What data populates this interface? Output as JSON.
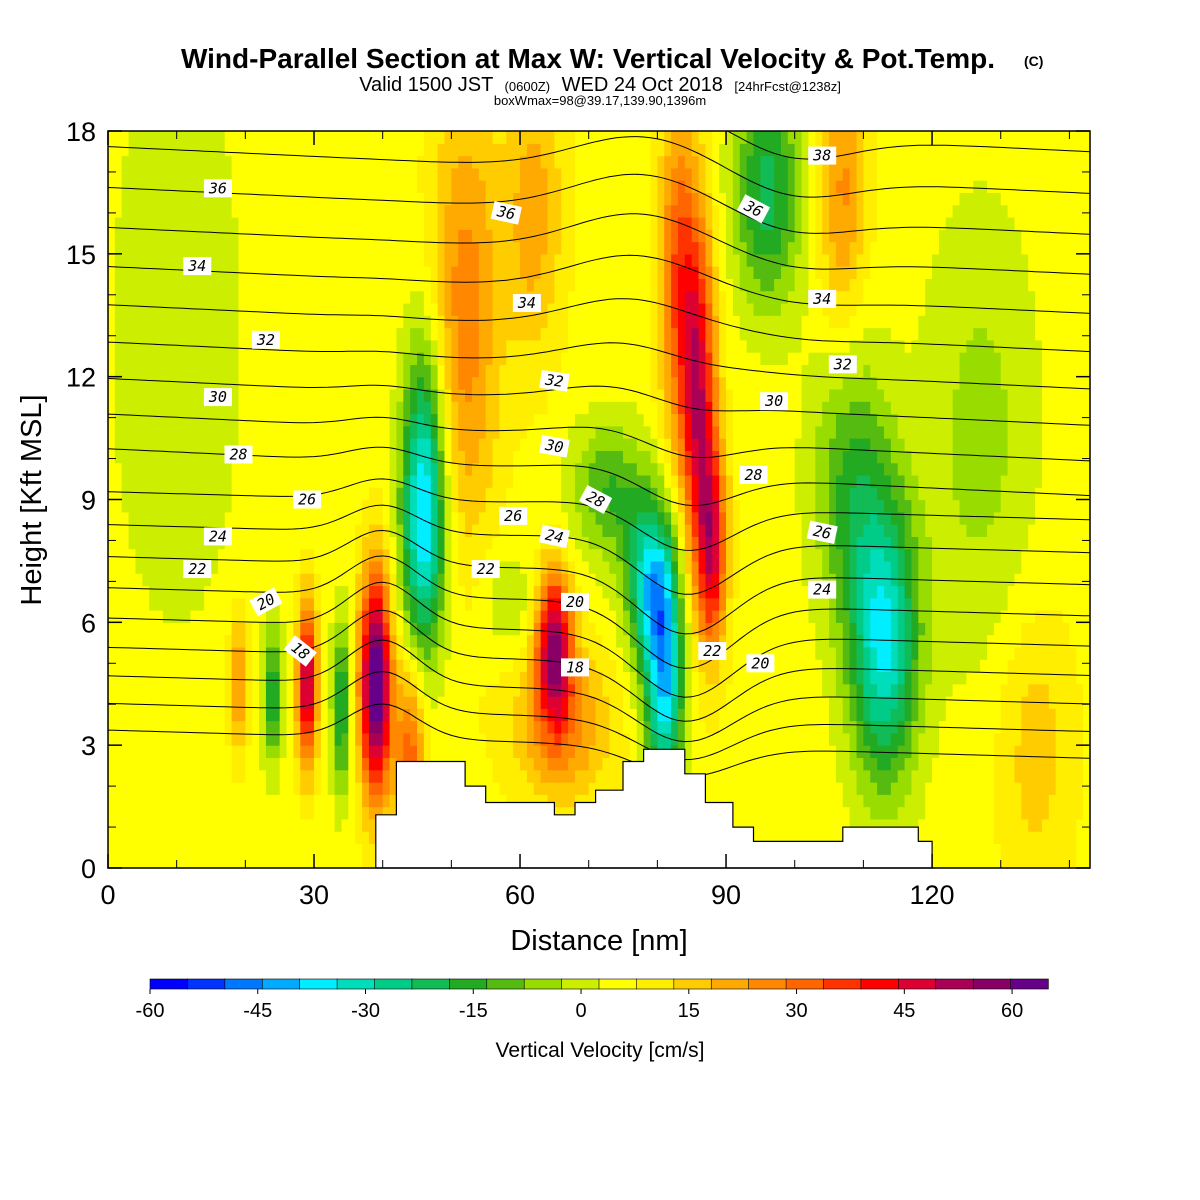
{
  "header": {
    "title": "Wind-Parallel Section at Max W: Vertical Velocity & Pot.Temp.",
    "copyright": "(C)",
    "valid_prefix": "Valid 1500 JST",
    "utc_time": "(0600Z)",
    "valid_date": "WED 24 Oct 2018",
    "forecast": "[24hrFcst@1238z]",
    "box_wmax": "boxWmax=98@39.17,139.90,1396m"
  },
  "colors": {
    "contour_line": "#000000",
    "terrain": "#ffffff",
    "palette": [
      "#0000ff",
      "#0033ff",
      "#0077ff",
      "#00aaff",
      "#00eeff",
      "#00ddbb",
      "#00cc88",
      "#11bb55",
      "#22aa22",
      "#55bb11",
      "#99dd00",
      "#ccee00",
      "#ffff00",
      "#ffee00",
      "#ffcc00",
      "#ffaa00",
      "#ff8800",
      "#ff6600",
      "#ff3300",
      "#ff0000",
      "#dd0033",
      "#aa0055",
      "#880066",
      "#660088"
    ]
  },
  "chart_data": {
    "type": "heatmap",
    "xlabel": "Distance [nm]",
    "ylabel": "Height [Kft MSL]",
    "xlim": [
      0,
      143
    ],
    "ylim": [
      0,
      18
    ],
    "x_ticks": [
      0,
      30,
      60,
      90,
      120
    ],
    "y_ticks": [
      0,
      3,
      6,
      9,
      12,
      15,
      18
    ],
    "colorbar": {
      "title": "Vertical Velocity [cm/s]",
      "min": -60,
      "max": 65,
      "step": 5,
      "tick_values": [
        -60,
        -45,
        -30,
        -15,
        0,
        15,
        30,
        45,
        60
      ]
    },
    "velocity_features": [
      {
        "x": 39,
        "z": 4.5,
        "sx": 1.6,
        "sz": 1.9,
        "w": 62
      },
      {
        "x": 29,
        "z": 4.5,
        "sx": 1.0,
        "sz": 1.4,
        "w": 45
      },
      {
        "x": 19,
        "z": 4.5,
        "sx": 1.0,
        "sz": 1.2,
        "w": 20
      },
      {
        "x": 24,
        "z": 4.2,
        "sx": 1.0,
        "sz": 1.2,
        "w": -22
      },
      {
        "x": 34,
        "z": 4.0,
        "sx": 1.0,
        "sz": 1.5,
        "w": -25
      },
      {
        "x": 44,
        "z": 2.8,
        "sx": 1.5,
        "sz": 1.6,
        "w": 25
      },
      {
        "x": 46,
        "z": 9.5,
        "sx": 2.2,
        "sz": 2.5,
        "w": -35
      },
      {
        "x": 46,
        "z": 7.5,
        "sx": 2.5,
        "sz": 2.0,
        "w": -15
      },
      {
        "x": 52,
        "z": 13.5,
        "sx": 3.5,
        "sz": 4.0,
        "w": 20
      },
      {
        "x": 65,
        "z": 5.5,
        "sx": 1.8,
        "sz": 1.3,
        "w": 45
      },
      {
        "x": 66,
        "z": 3.5,
        "sx": 5.0,
        "sz": 1.3,
        "w": 20
      },
      {
        "x": 81,
        "z": 4.5,
        "sx": 2.0,
        "sz": 2.0,
        "w": -42
      },
      {
        "x": 79,
        "z": 7.0,
        "sx": 2.5,
        "sz": 1.4,
        "w": -35
      },
      {
        "x": 73,
        "z": 9.2,
        "sx": 4.0,
        "sz": 1.2,
        "w": -18
      },
      {
        "x": 86,
        "z": 11.5,
        "sx": 1.8,
        "sz": 3.0,
        "w": 38
      },
      {
        "x": 88,
        "z": 7.8,
        "sx": 1.5,
        "sz": 1.8,
        "w": 35
      },
      {
        "x": 83,
        "z": 14.5,
        "sx": 2.0,
        "sz": 3.0,
        "w": 25
      },
      {
        "x": 96,
        "z": 16.5,
        "sx": 3.5,
        "sz": 2.0,
        "w": -25
      },
      {
        "x": 113,
        "z": 5.5,
        "sx": 3.5,
        "sz": 2.5,
        "w": -38
      },
      {
        "x": 108,
        "z": 9.5,
        "sx": 4.0,
        "sz": 2.5,
        "w": -18
      },
      {
        "x": 107,
        "z": 16.5,
        "sx": 2.5,
        "sz": 2.5,
        "w": 18
      },
      {
        "x": 62,
        "z": 16.0,
        "sx": 3.0,
        "sz": 2.5,
        "w": 15
      },
      {
        "x": 58,
        "z": 6.5,
        "sx": 3.0,
        "sz": 1.0,
        "w": -8
      },
      {
        "x": 127,
        "z": 10.5,
        "sx": 6.0,
        "sz": 4.0,
        "w": -10
      },
      {
        "x": 135,
        "z": 3.0,
        "sx": 4.0,
        "sz": 2.5,
        "w": 10
      },
      {
        "x": 10,
        "z": 13.0,
        "sx": 8.0,
        "sz": 6.0,
        "w": -6
      }
    ],
    "terrain_profile": [
      [
        39,
        0.0
      ],
      [
        39,
        1.3
      ],
      [
        42,
        1.3
      ],
      [
        42,
        2.6
      ],
      [
        52,
        2.6
      ],
      [
        52,
        2.0
      ],
      [
        55,
        2.0
      ],
      [
        55,
        1.6
      ],
      [
        65,
        1.6
      ],
      [
        65,
        1.3
      ],
      [
        68,
        1.3
      ],
      [
        68,
        1.6
      ],
      [
        71,
        1.6
      ],
      [
        71,
        1.9
      ],
      [
        75,
        1.9
      ],
      [
        75,
        2.6
      ],
      [
        78,
        2.6
      ],
      [
        78,
        2.9
      ],
      [
        84,
        2.9
      ],
      [
        84,
        2.3
      ],
      [
        87,
        2.3
      ],
      [
        87,
        1.6
      ],
      [
        91,
        1.6
      ],
      [
        91,
        1.0
      ],
      [
        94,
        1.0
      ],
      [
        94,
        0.65
      ],
      [
        107,
        0.65
      ],
      [
        107,
        1.0
      ],
      [
        118,
        1.0
      ],
      [
        118,
        0.65
      ],
      [
        120,
        0.65
      ],
      [
        120,
        0.0
      ]
    ],
    "theta_levels": [
      17,
      18,
      19,
      20,
      21,
      22,
      23,
      24,
      25,
      26,
      27,
      28,
      29,
      30,
      31,
      32,
      33,
      34,
      35,
      36,
      37,
      38,
      39
    ],
    "contour_labels": [
      {
        "text": "36",
        "x": 16,
        "z": 16.6,
        "angle": 0
      },
      {
        "text": "36",
        "x": 58,
        "z": 16.0,
        "angle": 12
      },
      {
        "text": "36",
        "x": 94,
        "z": 16.1,
        "angle": 28
      },
      {
        "text": "38",
        "x": 104,
        "z": 17.4,
        "angle": 0
      },
      {
        "text": "34",
        "x": 13,
        "z": 14.7,
        "angle": 0
      },
      {
        "text": "34",
        "x": 61,
        "z": 13.8,
        "angle": 0
      },
      {
        "text": "34",
        "x": 104,
        "z": 13.9,
        "angle": 0
      },
      {
        "text": "32",
        "x": 23,
        "z": 12.9,
        "angle": 0
      },
      {
        "text": "32",
        "x": 65,
        "z": 11.9,
        "angle": 8
      },
      {
        "text": "32",
        "x": 107,
        "z": 12.3,
        "angle": 0
      },
      {
        "text": "30",
        "x": 16,
        "z": 11.5,
        "angle": 0
      },
      {
        "text": "30",
        "x": 65,
        "z": 10.3,
        "angle": 10
      },
      {
        "text": "30",
        "x": 97,
        "z": 11.4,
        "angle": 0
      },
      {
        "text": "28",
        "x": 19,
        "z": 10.1,
        "angle": 0
      },
      {
        "text": "28",
        "x": 71,
        "z": 9.0,
        "angle": 28
      },
      {
        "text": "28",
        "x": 94,
        "z": 9.6,
        "angle": 0
      },
      {
        "text": "26",
        "x": 29,
        "z": 9.0,
        "angle": 0
      },
      {
        "text": "26",
        "x": 59,
        "z": 8.6,
        "angle": 0
      },
      {
        "text": "26",
        "x": 104,
        "z": 8.2,
        "angle": 12
      },
      {
        "text": "24",
        "x": 16,
        "z": 8.1,
        "angle": 0
      },
      {
        "text": "24",
        "x": 65,
        "z": 8.1,
        "angle": 12
      },
      {
        "text": "24",
        "x": 104,
        "z": 6.8,
        "angle": 0
      },
      {
        "text": "22",
        "x": 13,
        "z": 7.3,
        "angle": 0
      },
      {
        "text": "22",
        "x": 55,
        "z": 7.3,
        "angle": 0
      },
      {
        "text": "22",
        "x": 88,
        "z": 5.3,
        "angle": 0
      },
      {
        "text": "20",
        "x": 23,
        "z": 6.5,
        "angle": -28
      },
      {
        "text": "20",
        "x": 68,
        "z": 6.5,
        "angle": 0
      },
      {
        "text": "20",
        "x": 95,
        "z": 5.0,
        "angle": 0
      },
      {
        "text": "18",
        "x": 28,
        "z": 5.3,
        "angle": 38
      },
      {
        "text": "18",
        "x": 68,
        "z": 4.9,
        "angle": 0
      }
    ]
  }
}
